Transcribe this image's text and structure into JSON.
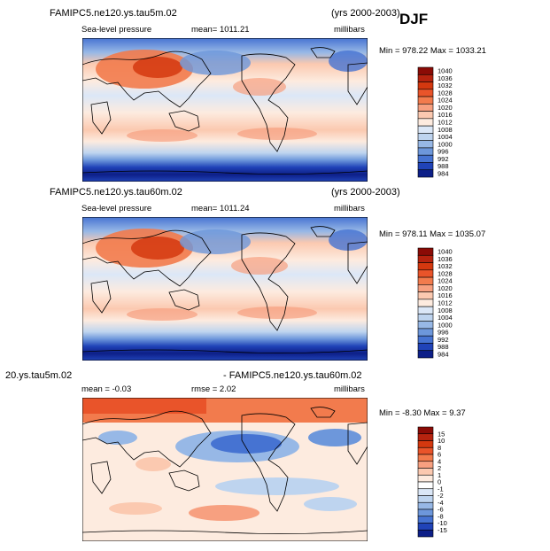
{
  "season": "DJF",
  "chart_data": [
    {
      "type": "heatmap",
      "title": "FAMIPC5.ne120.ys.tau5m.02",
      "years": "(yrs 2000-2003)",
      "field": "Sea-level pressure",
      "stat_text": "mean=  1011.21",
      "units": "millibars",
      "minmax_text": "Min =  978.22  Max =  1033.21",
      "min": 978.22,
      "max": 1033.21,
      "mean": 1011.21,
      "levels": [
        1040,
        1036,
        1032,
        1028,
        1024,
        1020,
        1016,
        1012,
        1008,
        1004,
        1000,
        996,
        992,
        988,
        984
      ],
      "colors": [
        "#8b0b06",
        "#b6230f",
        "#d4380f",
        "#e9542a",
        "#f27b4d",
        "#f7a080",
        "#fbc9b0",
        "#fdebdf",
        "#dbe7f7",
        "#bed4ef",
        "#97b8e6",
        "#6d97db",
        "#4673d2",
        "#2043b8",
        "#0d1f88"
      ]
    },
    {
      "type": "heatmap",
      "title": "FAMIPC5.ne120.ys.tau60m.02",
      "years": "(yrs 2000-2003)",
      "field": "Sea-level pressure",
      "stat_text": "mean=  1011.24",
      "units": "millibars",
      "minmax_text": "Min =  978.11  Max =  1035.07",
      "min": 978.11,
      "max": 1035.07,
      "mean": 1011.24,
      "levels": [
        1040,
        1036,
        1032,
        1028,
        1024,
        1020,
        1016,
        1012,
        1008,
        1004,
        1000,
        996,
        992,
        988,
        984
      ],
      "colors": [
        "#8b0b06",
        "#b6230f",
        "#d4380f",
        "#e9542a",
        "#f27b4d",
        "#f7a080",
        "#fbc9b0",
        "#fdebdf",
        "#dbe7f7",
        "#bed4ef",
        "#97b8e6",
        "#6d97db",
        "#4673d2",
        "#2043b8",
        "#0d1f88"
      ]
    },
    {
      "type": "heatmap",
      "title_left": "20.ys.tau5m.02",
      "title_right": "- FAMIPC5.ne120.ys.tau60m.02",
      "mean_text": "mean =   -0.03",
      "rmse_text": "rmse =   2.02",
      "units": "millibars",
      "minmax_text": "Min =  -8.30  Max =    9.37",
      "min": -8.3,
      "max": 9.37,
      "mean": -0.03,
      "rmse": 2.02,
      "levels": [
        "15",
        "10",
        "8",
        "6",
        "4",
        "2",
        "1",
        "0",
        "-1",
        "-2",
        "-4",
        "-6",
        "-8",
        "-10",
        "-15"
      ],
      "colors": [
        "#8b0b06",
        "#b6230f",
        "#d4380f",
        "#e9542a",
        "#f27b4d",
        "#f7a080",
        "#fbc9b0",
        "#fdebdf",
        "#ffffff",
        "#dbe7f7",
        "#bed4ef",
        "#97b8e6",
        "#6d97db",
        "#4673d2",
        "#2043b8",
        "#0d1f88"
      ]
    }
  ]
}
